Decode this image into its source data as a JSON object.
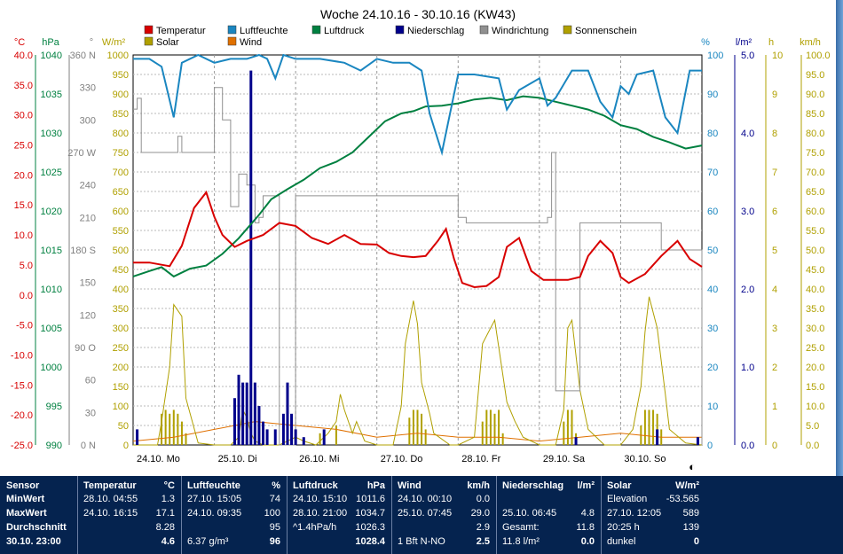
{
  "chart_data": {
    "type": "line",
    "title": "Woche 24.10.16 - 30.10.16 (KW43)",
    "x_ticks": [
      "24.10. Mo",
      "25.10. Di",
      "26.10. Mi",
      "27.10. Do",
      "28.10. Fr",
      "29.10. Sa",
      "30.10. So"
    ],
    "x_range": [
      "24.10. 00:00",
      "31.10. 00:00"
    ],
    "legend": [
      {
        "name": "Temperatur",
        "color": "#d80000"
      },
      {
        "name": "Luftfeuchte",
        "color": "#1a86c0"
      },
      {
        "name": "Luftdruck",
        "color": "#008040"
      },
      {
        "name": "Niederschlag",
        "color": "#00008b"
      },
      {
        "name": "Windrichtung",
        "color": "#909090"
      },
      {
        "name": "Sonnenschein",
        "color": "#b0a000"
      },
      {
        "name": "Solar",
        "color": "#b0a000"
      },
      {
        "name": "Wind",
        "color": "#e07000"
      }
    ],
    "axes_left": [
      {
        "unit": "°C",
        "color": "#d80000",
        "range": [
          -25,
          40
        ],
        "ticks": [
          "40.0",
          "35.0",
          "30.0",
          "25.0",
          "20.0",
          "15.0",
          "10.0",
          "5.0",
          "0.0",
          "-5.0",
          "-10.0",
          "-15.0",
          "-20.0",
          "-25.0"
        ]
      },
      {
        "unit": "hPa",
        "color": "#008040",
        "range": [
          990,
          1040
        ],
        "ticks": [
          "1040",
          "1035",
          "1030",
          "1025",
          "1020",
          "1015",
          "1010",
          "1005",
          "1000",
          "995",
          "990"
        ]
      },
      {
        "unit": "°",
        "color": "#808080",
        "range": [
          0,
          360
        ],
        "ticks": [
          "360 N",
          "330",
          "300",
          "270 W",
          "240",
          "210",
          "180 S",
          "150",
          "120",
          "90 O",
          "60",
          "30",
          "0 N"
        ]
      },
      {
        "unit": "W/m²",
        "color": "#b0a000",
        "range": [
          0,
          1000
        ],
        "ticks": [
          "1000",
          "950",
          "900",
          "850",
          "800",
          "750",
          "700",
          "650",
          "600",
          "550",
          "500",
          "450",
          "400",
          "350",
          "300",
          "250",
          "200",
          "150",
          "100",
          "50",
          "0"
        ]
      }
    ],
    "axes_right": [
      {
        "unit": "%",
        "color": "#1a86c0",
        "range": [
          0,
          100
        ],
        "ticks": [
          "100",
          "90",
          "80",
          "70",
          "60",
          "50",
          "40",
          "30",
          "20",
          "10",
          "0"
        ]
      },
      {
        "unit": "l/m²",
        "color": "#00008b",
        "range": [
          0,
          5
        ],
        "ticks": [
          "5.0",
          "4.0",
          "3.0",
          "2.0",
          "1.0",
          "0.0"
        ]
      },
      {
        "unit": "h",
        "color": "#b0a000",
        "range": [
          0,
          10
        ],
        "ticks": [
          "10",
          "9",
          "8",
          "7",
          "6",
          "5",
          "4",
          "3",
          "2",
          "1",
          "0"
        ]
      },
      {
        "unit": "km/h",
        "color": "#b0a000",
        "range": [
          0,
          100
        ],
        "ticks": [
          "100.0",
          "95.0",
          "90.0",
          "85.0",
          "80.0",
          "75.0",
          "70.0",
          "65.0",
          "60.0",
          "55.0",
          "50.0",
          "45.0",
          "40.0",
          "35.0",
          "30.0",
          "25.0",
          "20.0",
          "15.0",
          "10.0",
          "5.0",
          "0.0"
        ]
      }
    ],
    "series": [
      {
        "name": "Temperatur",
        "unit": "°C",
        "x": [
          0,
          0.2,
          0.45,
          0.6,
          0.75,
          0.9,
          1.0,
          1.1,
          1.25,
          1.4,
          1.6,
          1.8,
          2.0,
          2.2,
          2.4,
          2.6,
          2.8,
          3.0,
          3.15,
          3.3,
          3.45,
          3.6,
          3.75,
          3.85,
          3.95,
          4.05,
          4.2,
          4.35,
          4.5,
          4.6,
          4.75,
          4.9,
          5.05,
          5.2,
          5.35,
          5.5,
          5.6,
          5.75,
          5.9,
          6.0,
          6.1,
          6.3,
          6.5,
          6.7,
          6.85,
          7.0
        ],
        "y": [
          5.4,
          5.4,
          4.8,
          8.2,
          14.5,
          17.1,
          13.0,
          10.0,
          8.0,
          9.0,
          10.0,
          12.0,
          11.5,
          9.5,
          8.5,
          10.0,
          8.5,
          8.4,
          7.0,
          6.5,
          6.3,
          6.5,
          9.0,
          11.0,
          6.0,
          2.0,
          1.3,
          1.5,
          3.0,
          8.0,
          9.5,
          4.0,
          2.5,
          2.5,
          2.5,
          3.0,
          6.5,
          9.0,
          7.0,
          3.0,
          2.0,
          3.5,
          6.5,
          9.0,
          6.0,
          4.7
        ]
      },
      {
        "name": "Luftfeuchte",
        "unit": "%",
        "x": [
          0,
          0.2,
          0.35,
          0.5,
          0.6,
          0.8,
          1.0,
          1.2,
          1.4,
          1.55,
          1.65,
          1.75,
          1.85,
          2.0,
          2.3,
          2.6,
          2.8,
          3.0,
          3.2,
          3.4,
          3.55,
          3.65,
          3.8,
          4.0,
          4.2,
          4.5,
          4.6,
          4.75,
          5.0,
          5.1,
          5.2,
          5.4,
          5.6,
          5.75,
          5.9,
          6.0,
          6.1,
          6.2,
          6.4,
          6.55,
          6.7,
          6.85,
          7.0
        ],
        "y": [
          99,
          99,
          97,
          84,
          98,
          100,
          98,
          99,
          99,
          100,
          99,
          94,
          100,
          99,
          99,
          98,
          96,
          99,
          98,
          98,
          96,
          85,
          75,
          95,
          95,
          94,
          86,
          91,
          94,
          87,
          89,
          96,
          96,
          88,
          84,
          92,
          90,
          95,
          96,
          84,
          80,
          96,
          96
        ]
      },
      {
        "name": "Luftdruck",
        "unit": "hPa",
        "x": [
          0,
          0.2,
          0.35,
          0.5,
          0.7,
          0.9,
          1.1,
          1.3,
          1.4,
          1.55,
          1.7,
          1.9,
          2.1,
          2.3,
          2.5,
          2.7,
          2.9,
          3.1,
          3.3,
          3.45,
          3.6,
          3.8,
          4.0,
          4.2,
          4.4,
          4.6,
          4.8,
          5.0,
          5.2,
          5.4,
          5.6,
          5.8,
          6.0,
          6.2,
          6.4,
          6.6,
          6.8,
          7.0
        ],
        "y": [
          1011.6,
          1012.3,
          1012.8,
          1011.6,
          1012.6,
          1013.0,
          1014.5,
          1016.5,
          1017.7,
          1019.5,
          1021.5,
          1022.8,
          1024.0,
          1025.5,
          1026.3,
          1027.5,
          1029.5,
          1031.5,
          1032.5,
          1032.8,
          1033.4,
          1033.5,
          1033.8,
          1034.3,
          1034.5,
          1034.2,
          1034.7,
          1034.5,
          1034.0,
          1033.5,
          1033.0,
          1032.2,
          1031.0,
          1030.5,
          1029.5,
          1028.8,
          1028.0,
          1028.4
        ]
      },
      {
        "name": "Windrichtung",
        "unit": "°",
        "x": [
          0,
          0.05,
          0.1,
          0.3,
          0.5,
          0.55,
          0.6,
          1.0,
          1.05,
          1.1,
          1.2,
          1.3,
          1.4,
          1.5,
          1.55,
          1.6,
          1.7,
          1.8,
          1.9,
          2.0,
          4.0,
          4.1,
          4.2,
          5.0,
          5.1,
          5.15,
          5.2,
          5.4,
          5.5,
          5.6,
          6.0,
          6.5,
          7.0
        ],
        "y": [
          310,
          320,
          270,
          270,
          270,
          285,
          270,
          330,
          330,
          300,
          220,
          250,
          240,
          205,
          210,
          230,
          230,
          0,
          0,
          230,
          210,
          205,
          205,
          205,
          210,
          270,
          50,
          50,
          205,
          205,
          205,
          180,
          0
        ]
      },
      {
        "name": "Solar",
        "unit": "W/m²",
        "x": [
          0,
          0.3,
          0.35,
          0.45,
          0.5,
          0.6,
          0.65,
          0.8,
          1.0,
          1.2,
          1.3,
          1.35,
          1.4,
          1.45,
          1.5,
          1.6,
          1.8,
          2.0,
          2.1,
          2.25,
          2.4,
          2.5,
          2.55,
          2.6,
          2.7,
          2.75,
          2.85,
          3.0,
          3.2,
          3.3,
          3.35,
          3.45,
          3.5,
          3.55,
          3.65,
          3.7,
          3.9,
          4.0,
          4.2,
          4.3,
          4.4,
          4.45,
          4.5,
          4.6,
          4.7,
          4.8,
          5.0,
          5.2,
          5.3,
          5.35,
          5.4,
          5.5,
          5.6,
          5.8,
          6.0,
          6.15,
          6.25,
          6.3,
          6.35,
          6.45,
          6.55,
          6.6,
          6.8,
          7.0
        ],
        "y": [
          0,
          0,
          60,
          200,
          360,
          330,
          120,
          5,
          0,
          0,
          20,
          90,
          70,
          30,
          10,
          0,
          0,
          20,
          10,
          0,
          30,
          60,
          130,
          90,
          30,
          60,
          10,
          0,
          0,
          100,
          260,
          370,
          310,
          160,
          80,
          30,
          0,
          0,
          20,
          260,
          300,
          320,
          250,
          110,
          60,
          20,
          0,
          0,
          90,
          300,
          320,
          140,
          40,
          0,
          0,
          40,
          150,
          290,
          380,
          300,
          130,
          40,
          5,
          0
        ]
      },
      {
        "name": "Niederschlag",
        "unit": "l/m²",
        "x": [
          0.05,
          1.25,
          1.3,
          1.35,
          1.4,
          1.45,
          1.5,
          1.55,
          1.6,
          1.65,
          1.75,
          1.85,
          1.9,
          1.95,
          2.0,
          2.1,
          2.35,
          5.45,
          6.45,
          6.95
        ],
        "y": [
          0.2,
          0.6,
          0.9,
          0.8,
          0.8,
          4.8,
          0.8,
          0.5,
          0.3,
          0.2,
          0.2,
          0.4,
          0.8,
          0.4,
          0.2,
          0.1,
          0.2,
          0.1,
          0.2,
          0.1
        ]
      },
      {
        "name": "Sonnenschein",
        "unit": "h",
        "x": [
          0.35,
          0.4,
          0.45,
          0.5,
          0.55,
          0.6,
          0.65,
          2.3,
          2.5,
          3.4,
          3.45,
          3.5,
          3.55,
          3.6,
          4.3,
          4.35,
          4.4,
          4.45,
          4.5,
          4.55,
          5.3,
          5.35,
          5.4,
          5.45,
          6.25,
          6.3,
          6.35,
          6.4,
          6.45,
          6.5
        ],
        "y": [
          0.8,
          0.9,
          0.8,
          0.9,
          0.8,
          0.6,
          0.3,
          0.3,
          0.5,
          0.7,
          0.9,
          0.9,
          0.8,
          0.4,
          0.6,
          0.9,
          0.9,
          0.8,
          0.9,
          0.3,
          0.6,
          0.9,
          0.9,
          0.3,
          0.5,
          0.9,
          0.9,
          0.9,
          0.8,
          0.4
        ]
      },
      {
        "name": "Wind",
        "unit": "km/h",
        "x": [
          0,
          0.5,
          1.0,
          1.5,
          2.0,
          2.5,
          3.0,
          3.5,
          4.0,
          4.5,
          5.0,
          5.5,
          6.0,
          6.5,
          7.0
        ],
        "y": [
          1.0,
          2.0,
          4.0,
          6.0,
          5.0,
          4.0,
          2.0,
          3.0,
          2.0,
          2.0,
          1.0,
          2.0,
          3.0,
          2.0,
          2.0
        ]
      }
    ]
  },
  "symbol": "◐",
  "stats_table": {
    "sensor": {
      "header": "Sensor",
      "min_label": "MinWert",
      "max_label": "MaxWert",
      "avg_label": "Durchschnitt",
      "current_label": "30.10. 23:00"
    },
    "temperature": {
      "header": "Temperatur",
      "unit": "°C",
      "min_time": "28.10. 04:55",
      "min": "1.3",
      "max_time": "24.10. 16:15",
      "max": "17.1",
      "avg": "8.28",
      "current": "4.6"
    },
    "humidity": {
      "header": "Luftfeuchte",
      "unit": "%",
      "min_time": "27.10. 15:05",
      "min": "74",
      "max_time": "24.10. 09:35",
      "max": "100",
      "avg": "95",
      "extra": "6.37 g/m³",
      "current": "96"
    },
    "pressure": {
      "header": "Luftdruck",
      "unit": "hPa",
      "min_time": "24.10. 15:10",
      "min": "1011.6",
      "max_time": "28.10. 21:00",
      "max": "1034.7",
      "trend": "^1.4hPa/h",
      "avg": "1026.3",
      "current": "1028.4"
    },
    "wind": {
      "header": "Wind",
      "unit": "km/h",
      "min_time": "24.10. 00:10",
      "min": "0.0",
      "max_time": "25.10. 07:45",
      "max": "29.0",
      "avg": "2.9",
      "current_desc": "1 Bft N-NO",
      "current": "2.5"
    },
    "rain": {
      "header": "Niederschlag",
      "unit": "l/m²",
      "max_time": "25.10. 06:45",
      "max": "4.8",
      "total_label": "Gesamt:",
      "total": "11.8",
      "current_desc": "11.8 l/m²",
      "current": "0.0"
    },
    "solar": {
      "header": "Solar",
      "unit": "W/m²",
      "elev_label": "Elevation",
      "elev": "-53.565",
      "max_time": "27.10. 12:05",
      "max": "589",
      "hours": "20:25 h",
      "hours_val": "139",
      "state": "dunkel",
      "current": "0"
    }
  }
}
